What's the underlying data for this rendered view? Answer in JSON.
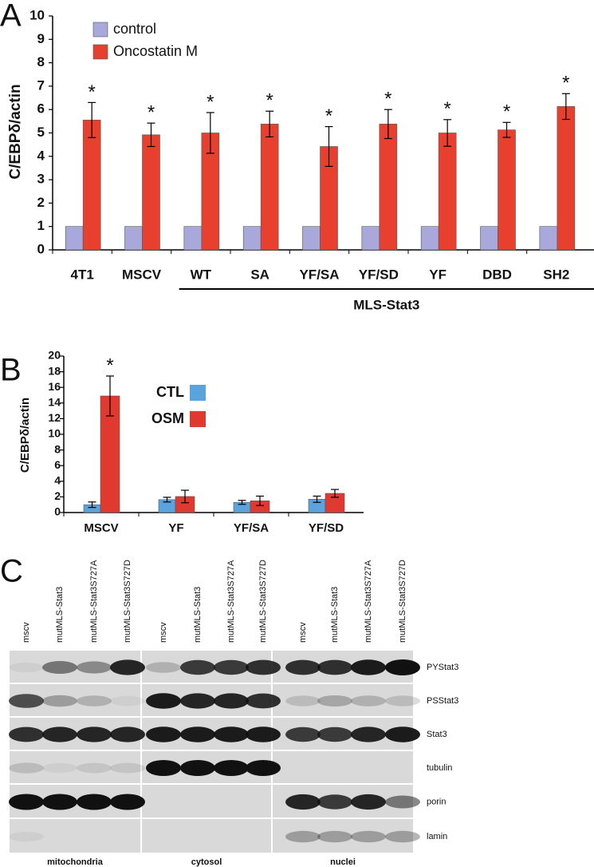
{
  "chart_data": [
    {
      "type": "bar",
      "panel": "A",
      "ylabel": "C/EBPδ/actin",
      "categories": [
        "4T1",
        "MSCV",
        "WT",
        "SA",
        "YF/SA",
        "YF/SD",
        "YF",
        "DBD",
        "SH2"
      ],
      "group_label": "MLS-Stat3",
      "series": [
        {
          "name": "control",
          "color": "#a8a8da",
          "values": [
            1,
            1,
            1,
            1,
            1,
            1,
            1,
            1,
            1
          ]
        },
        {
          "name": "Oncostatin M",
          "color": "#e8402f",
          "values": [
            5.55,
            4.92,
            5.0,
            5.38,
            4.42,
            5.38,
            5.0,
            5.13,
            6.13
          ],
          "errors": [
            0.75,
            0.5,
            0.87,
            0.55,
            0.85,
            0.62,
            0.57,
            0.32,
            0.55
          ],
          "significance": [
            "*",
            "*",
            "*",
            "*",
            "*",
            "*",
            "*",
            "*",
            "*"
          ]
        }
      ],
      "ylim": [
        0,
        10
      ],
      "yticks": [
        0,
        1,
        2,
        3,
        4,
        5,
        6,
        7,
        8,
        9,
        10
      ],
      "grid": false,
      "legend": "top-left"
    },
    {
      "type": "bar",
      "panel": "B",
      "ylabel": "C/EBPδ/actin",
      "categories": [
        "MSCV",
        "YF",
        "YF/SA",
        "YF/SD"
      ],
      "series": [
        {
          "name": "CTL",
          "color": "#5ba3dd",
          "values": [
            1.0,
            1.65,
            1.3,
            1.7
          ],
          "errors": [
            0.35,
            0.3,
            0.25,
            0.4
          ]
        },
        {
          "name": "OSM",
          "color": "#e03a30",
          "values": [
            14.9,
            2.05,
            1.5,
            2.45
          ],
          "errors": [
            2.55,
            0.8,
            0.6,
            0.5
          ],
          "significance": [
            "*",
            null,
            null,
            null
          ]
        }
      ],
      "ylim": [
        0,
        20
      ],
      "yticks": [
        0,
        2,
        4,
        6,
        8,
        10,
        12,
        14,
        16,
        18,
        20
      ],
      "grid": false,
      "legend": "center"
    }
  ],
  "blot": {
    "panel": "C",
    "fractions": [
      {
        "name": "mitochondria",
        "lanes": [
          "mscv",
          "mutMLS-Stat3",
          "mutMLS-Stat3S727A",
          "mutMLS-Stat3S727D"
        ]
      },
      {
        "name": "cytosol",
        "lanes": [
          "mscv",
          "mutMLS-Stat3",
          "mutMLS-Stat3S727A",
          "mutMLS-Stat3S727D"
        ]
      },
      {
        "name": "nuclei",
        "lanes": [
          "mscv",
          "mutMLS-Stat3",
          "mutMLS-Stat3S727A",
          "mutMLS-Stat3S727D"
        ]
      }
    ],
    "rows": [
      "PYStat3",
      "PSStat3",
      "Stat3",
      "tubulin",
      "porin",
      "lamin"
    ]
  }
}
